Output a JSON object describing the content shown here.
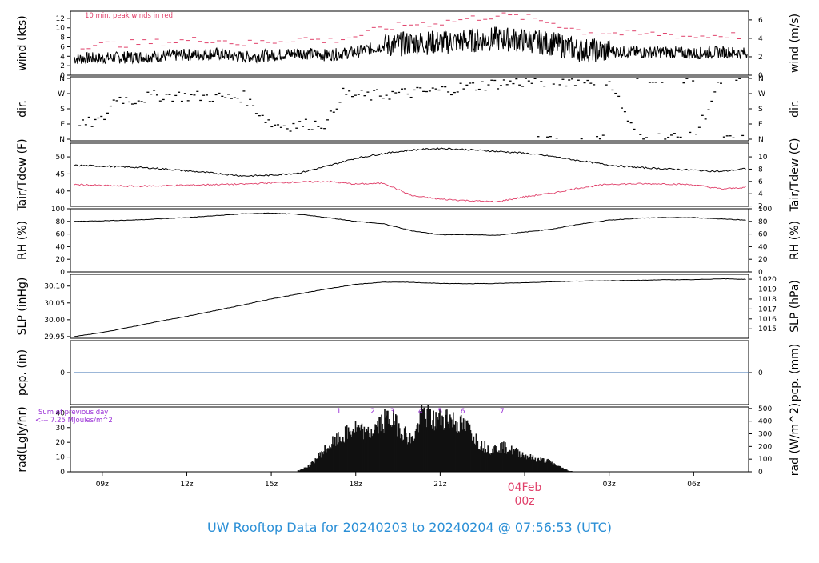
{
  "title": "UW Rooftop Data for 20240203  to  20240204 @ 07:56:53  (UTC)",
  "colors": {
    "title": "#2b8fd6",
    "peak": "#e0406a",
    "precip_line": "#3a6fb0",
    "solar_annot": "#9a30d6",
    "date_marker": "#e0406a"
  },
  "time_axis": {
    "ticks": [
      {
        "label": "09z",
        "hour": 9
      },
      {
        "label": "12z",
        "hour": 12
      },
      {
        "label": "15z",
        "hour": 15
      },
      {
        "label": "18z",
        "hour": 18
      },
      {
        "label": "21z",
        "hour": 21
      },
      {
        "label": "03z",
        "hour": 27
      },
      {
        "label": "06z",
        "hour": 30
      }
    ],
    "date_marker": {
      "date": "04Feb",
      "time": "00z",
      "hour": 24
    }
  },
  "chart_data": [
    {
      "id": "wind",
      "type": "line",
      "left_label": "wind (kts)",
      "right_label": "wind (m/s)",
      "annotation": "10 min. peak winds in red",
      "left_ticks": [
        0,
        2,
        4,
        6,
        8,
        10,
        12
      ],
      "right_ticks": [
        0,
        2,
        4,
        6
      ],
      "ylim": [
        0,
        13.5
      ],
      "series": [
        {
          "x": [
            8,
            9,
            10,
            11,
            12,
            13,
            14,
            15,
            16,
            17,
            18,
            19,
            20,
            21,
            22,
            23,
            24,
            25,
            26,
            27,
            28,
            29,
            30,
            31,
            31.9
          ],
          "y": [
            3.5,
            3.6,
            3.8,
            4.0,
            4.3,
            4.6,
            3.8,
            4.2,
            4.7,
            4.2,
            4.9,
            6.2,
            6.8,
            6.9,
            7.3,
            7.7,
            7.4,
            6.6,
            5.3,
            5.1,
            4.8,
            4.9,
            4.6,
            4.9,
            4.6
          ]
        },
        {
          "x": [
            8,
            9,
            10,
            11,
            12,
            13,
            14,
            15,
            16,
            17,
            18,
            19,
            20,
            21,
            22,
            23,
            24,
            25,
            26,
            27,
            28,
            29,
            30,
            31,
            31.9
          ],
          "y": [
            6.3,
            6.4,
            6.7,
            6.9,
            7.3,
            7.6,
            6.6,
            7.1,
            7.8,
            7.2,
            8.2,
            9.9,
            10.8,
            11.1,
            11.9,
            12.6,
            12.2,
            11.1,
            9.3,
            8.9,
            8.6,
            8.7,
            8.1,
            8.5,
            8.2
          ]
        }
      ]
    },
    {
      "id": "dir",
      "type": "scatter",
      "left_label": "dir.",
      "right_label": "dir.",
      "left_ticks": [
        "N",
        "E",
        "S",
        "W",
        "N"
      ],
      "right_ticks": [
        "N",
        "E",
        "S",
        "W",
        "N"
      ],
      "ylim": [
        0,
        360
      ],
      "series": [
        {
          "x": [
            8,
            8.5,
            9,
            9.5,
            10,
            11,
            12,
            13,
            13.5,
            14,
            15,
            15.5,
            16,
            16.5,
            17,
            17.5,
            18,
            18.5,
            19,
            19.5,
            20,
            20.5,
            21,
            21.5,
            22,
            22.5,
            23,
            24,
            25,
            26,
            27,
            28,
            29,
            30,
            31,
            31.9
          ],
          "y": [
            60,
            95,
            110,
            250,
            230,
            260,
            255,
            250,
            245,
            255,
            90,
            80,
            85,
            90,
            95,
            270,
            260,
            255,
            265,
            270,
            275,
            280,
            290,
            300,
            310,
            320,
            330,
            340,
            345,
            350,
            355,
            0,
            10,
            5,
            355,
            350
          ]
        }
      ]
    },
    {
      "id": "temp",
      "type": "line",
      "left_label": "Tair/Tdew (F)",
      "right_label": "Tair/Tdew (C)",
      "left_ticks": [
        40,
        45,
        50
      ],
      "right_ticks": [
        2,
        4,
        6,
        8,
        10
      ],
      "ylim": [
        35.5,
        54
      ],
      "series": [
        {
          "x": [
            8,
            9,
            10,
            11,
            12,
            13,
            14,
            15,
            16,
            17,
            18,
            19,
            20,
            21,
            22,
            23,
            24,
            25,
            26,
            27,
            28,
            29,
            30,
            31,
            31.9
          ],
          "y": [
            47.5,
            47.3,
            47.0,
            46.6,
            45.9,
            45.2,
            44.4,
            44.6,
            45.3,
            47.3,
            49.6,
            51.0,
            52.0,
            52.5,
            52.1,
            51.6,
            51.1,
            50.1,
            48.8,
            47.6,
            46.9,
            46.5,
            46.1,
            45.7,
            46.6
          ]
        },
        {
          "x": [
            8,
            9,
            10,
            11,
            12,
            13,
            14,
            15,
            16,
            17,
            18,
            19,
            20,
            21,
            22,
            23,
            24,
            25,
            26,
            27,
            28,
            29,
            30,
            31,
            31.9
          ],
          "y": [
            41.9,
            41.6,
            41.4,
            41.5,
            41.7,
            41.9,
            42.0,
            42.4,
            42.6,
            42.8,
            42.0,
            42.3,
            38.6,
            37.6,
            37.2,
            36.8,
            38.3,
            39.4,
            41.0,
            42.0,
            42.1,
            42.1,
            41.8,
            40.6,
            41.1
          ]
        }
      ]
    },
    {
      "id": "rh",
      "type": "line",
      "left_label": "RH (%)",
      "right_label": "RH (%)",
      "left_ticks": [
        0,
        20,
        40,
        60,
        80,
        100
      ],
      "right_ticks": [
        0,
        20,
        40,
        60,
        80,
        100
      ],
      "ylim": [
        0,
        100
      ],
      "series": [
        {
          "x": [
            8,
            9,
            10,
            11,
            12,
            13,
            14,
            15,
            16,
            17,
            18,
            19,
            20,
            21,
            22,
            23,
            24,
            25,
            26,
            27,
            28,
            29,
            30,
            31,
            31.9
          ],
          "y": [
            80,
            81,
            82,
            84,
            86,
            89,
            92,
            93,
            91,
            86,
            80,
            76,
            65,
            59,
            59,
            58,
            63,
            68,
            76,
            82,
            85,
            86,
            86,
            84,
            82
          ]
        }
      ]
    },
    {
      "id": "slp",
      "type": "line",
      "left_label": "SLP (inHg)",
      "right_label": "SLP (hPa)",
      "left_ticks": [
        29.95,
        30.0,
        30.05,
        30.1
      ],
      "right_ticks": [
        1015,
        1016,
        1017,
        1018,
        1019,
        1020
      ],
      "ylim": [
        29.945,
        30.135
      ],
      "series": [
        {
          "x": [
            8,
            9,
            10,
            11,
            12,
            13,
            14,
            15,
            16,
            17,
            18,
            19,
            20,
            21,
            22,
            23,
            24,
            25,
            26,
            27,
            28,
            29,
            30,
            31,
            31.9
          ],
          "y": [
            29.95,
            29.962,
            29.978,
            29.995,
            30.01,
            30.027,
            30.044,
            30.062,
            30.077,
            30.092,
            30.105,
            30.112,
            30.111,
            30.108,
            30.107,
            30.108,
            30.11,
            30.113,
            30.115,
            30.116,
            30.117,
            30.119,
            30.119,
            30.122,
            30.12
          ]
        }
      ]
    },
    {
      "id": "pcp",
      "type": "line",
      "left_label": "pcp. (in)",
      "right_label": "pcp. (mm)",
      "left_ticks": [
        0
      ],
      "right_ticks": [
        0
      ],
      "ylim": [
        -1,
        1
      ],
      "series": [
        {
          "x": [
            8,
            31.9
          ],
          "y": [
            0,
            0
          ]
        }
      ]
    },
    {
      "id": "rad",
      "type": "area",
      "left_label": "rad(Lgly/hr)",
      "right_label": "rad (W/m^2)",
      "annotation_line1": "Sum of previous day",
      "annotation_line2": "<--- 7.25 MJoules/m^2",
      "left_ticks": [
        0,
        10,
        20,
        30,
        40
      ],
      "right_ticks": [
        0,
        100,
        200,
        300,
        400,
        500
      ],
      "ylim": [
        0,
        44
      ],
      "peak_markers": [
        {
          "label": "1",
          "hour": 17.4
        },
        {
          "label": "2",
          "hour": 18.6
        },
        {
          "label": "3",
          "hour": 19.3
        },
        {
          "label": "4",
          "hour": 20.3
        },
        {
          "label": "5",
          "hour": 21.0
        },
        {
          "label": "6",
          "hour": 21.8
        },
        {
          "label": "7",
          "hour": 23.2
        }
      ],
      "series": [
        {
          "x": [
            16.0,
            16.4,
            16.8,
            17.2,
            17.6,
            18.0,
            18.4,
            18.8,
            19.2,
            19.6,
            20.0,
            20.4,
            20.8,
            21.2,
            21.6,
            22.0,
            22.4,
            22.8,
            23.2,
            23.6,
            24.0,
            24.4,
            24.8,
            25.2,
            25.6
          ],
          "y": [
            1,
            5,
            14,
            21,
            26,
            31,
            26,
            33,
            39,
            31,
            22,
            42,
            36,
            40,
            35,
            31,
            20,
            16,
            18,
            15,
            12,
            9,
            8,
            4,
            0.5
          ]
        }
      ]
    }
  ]
}
